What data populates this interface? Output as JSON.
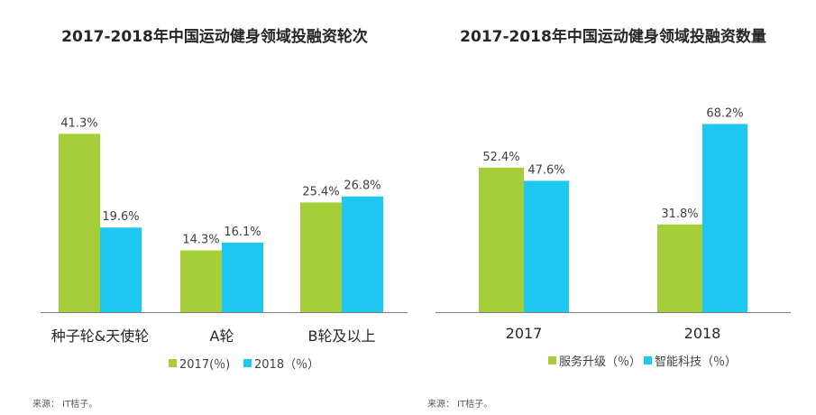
{
  "chart_data": [
    {
      "type": "bar",
      "title": "2017-2018年中国运动健身领域投融资轮次",
      "categories": [
        "种子轮&天使轮",
        "A轮",
        "B轮及以上"
      ],
      "series": [
        {
          "name": "2017(％)",
          "values": [
            41.3,
            14.3,
            25.4
          ],
          "labels": [
            "41.3%",
            "14.3%",
            "25.4%"
          ],
          "color": "#a6ce39"
        },
        {
          "name": "2018（％）",
          "values": [
            19.6,
            16.1,
            26.8
          ],
          "labels": [
            "19.6%",
            "16.1%",
            "26.8%"
          ],
          "color": "#1fc8f0"
        }
      ],
      "ylim": [
        0,
        42
      ],
      "grid": false,
      "legend_position": "bottom",
      "source": "来源： IT桔子。"
    },
    {
      "type": "bar",
      "title": "2017-2018年中国运动健身领域投融资数量",
      "categories": [
        "2017",
        "2018"
      ],
      "series": [
        {
          "name": "服务升级（％）",
          "values": [
            52.4,
            31.8
          ],
          "labels": [
            "52.4%",
            "31.8%"
          ],
          "color": "#a6ce39"
        },
        {
          "name": "智能科技（％）",
          "values": [
            47.6,
            68.2
          ],
          "labels": [
            "47.6%",
            "68.2%"
          ],
          "color": "#1fc8f0"
        }
      ],
      "ylim": [
        0,
        69
      ],
      "grid": false,
      "legend_position": "bottom",
      "source": "来源： IT桔子。"
    }
  ]
}
